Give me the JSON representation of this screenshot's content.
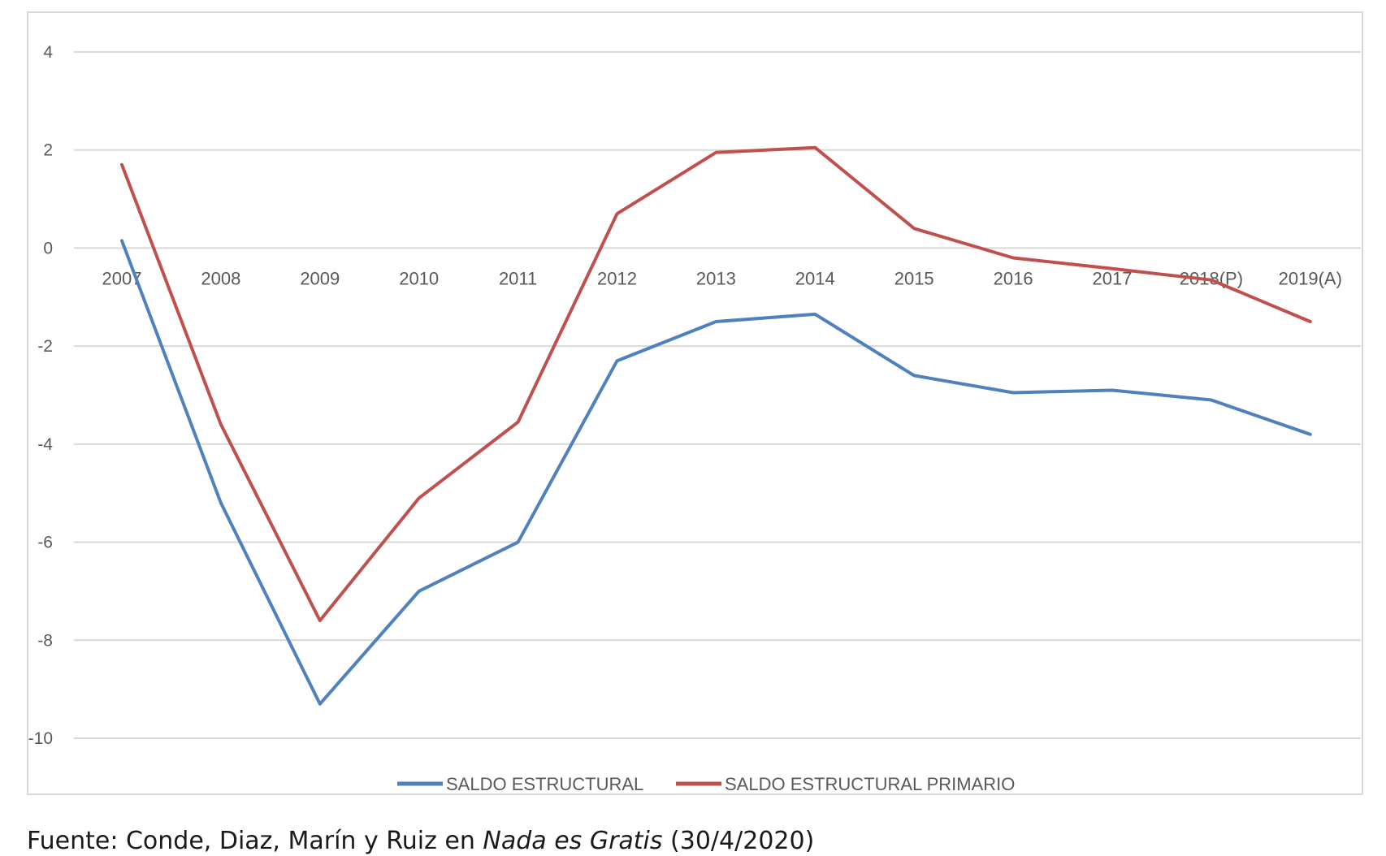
{
  "chart_data": {
    "type": "line",
    "title": "",
    "xlabel": "",
    "ylabel": "",
    "categories": [
      "2007",
      "2008",
      "2009",
      "2010",
      "2011",
      "2012",
      "2013",
      "2014",
      "2015",
      "2016",
      "2017",
      "2018(P)",
      "2019(A)"
    ],
    "y_ticks": [
      "4",
      "2",
      "0",
      "-2",
      "-4",
      "-6",
      "-8",
      "-10"
    ],
    "ylim": [
      -10,
      4
    ],
    "grid": true,
    "legend_position": "bottom",
    "series": [
      {
        "name": "SALDO ESTRUCTURAL",
        "color": "#4f81bd",
        "values": [
          0.15,
          -5.2,
          -9.3,
          -7.0,
          -6.0,
          -2.3,
          -1.5,
          -1.35,
          -2.6,
          -2.95,
          -2.9,
          -3.1,
          -3.8
        ]
      },
      {
        "name": "SALDO ESTRUCTURAL PRIMARIO",
        "color": "#c0504d",
        "values": [
          1.7,
          -3.6,
          -7.6,
          -5.1,
          -3.55,
          0.7,
          1.95,
          2.05,
          0.4,
          -0.2,
          -0.42,
          -0.65,
          -1.5
        ]
      }
    ]
  },
  "source": {
    "prefix": "Fuente: Conde, Diaz, Marín y Ruiz en ",
    "italic": "Nada es Gratis",
    "suffix": " (30/4/2020)"
  }
}
